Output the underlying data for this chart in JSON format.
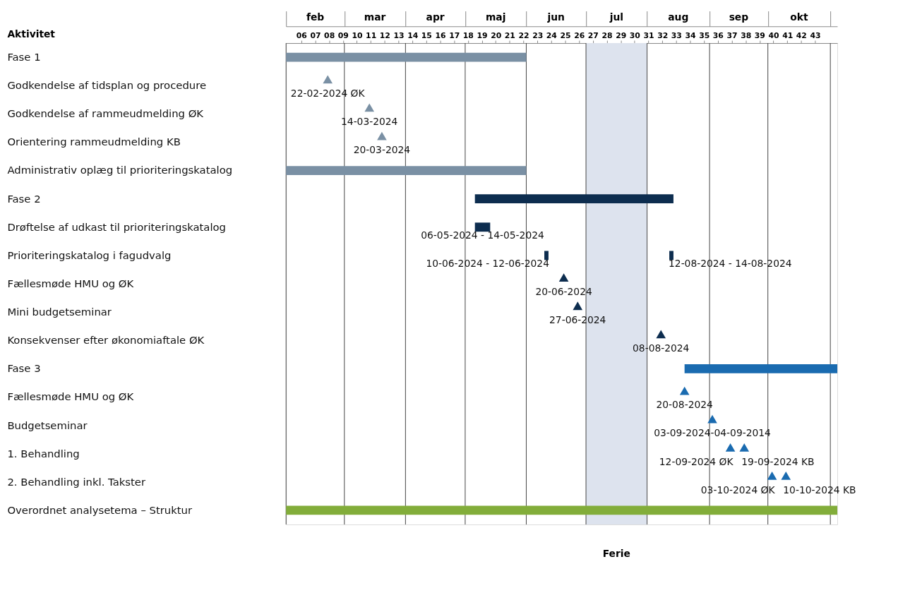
{
  "chart_data": {
    "type": "bar",
    "orientation": "horizontal",
    "ylabel": "Aktivitet",
    "categories": [
      "Fase 1",
      "Godkendelse af tidsplan og procedure",
      "Godkendelse af rammeudmelding ØK",
      "Orientering rammeudmelding KB",
      "Administrativ oplæg til prioriteringskatalog",
      "Fase 2",
      "Drøftelse af udkast til prioriteringskatalog",
      "Prioriteringskatalog i fagudvalg",
      "Fællesmøde HMU og ØK",
      "Mini budgetseminar",
      "Konsekvenser efter økonomiaftale ØK",
      "Fase 3",
      "Fællesmøde HMU og ØK",
      "Budgetseminar",
      "1. Behandling",
      "2. Behandling inkl. Takster",
      "Overordnet analysetema – Struktur"
    ],
    "xlim": [
      4.9,
      44.6
    ],
    "xticks": [
      {
        "value": 6,
        "label": "06"
      },
      {
        "value": 7,
        "label": "07"
      },
      {
        "value": 8,
        "label": "08"
      },
      {
        "value": 9,
        "label": "09"
      },
      10,
      11,
      12,
      13,
      14,
      15,
      16,
      17,
      18,
      19,
      20,
      21,
      22,
      23,
      24,
      25,
      26,
      27,
      28,
      29,
      30,
      31,
      32,
      33,
      34,
      35,
      36,
      37,
      38,
      39,
      40,
      41,
      42,
      43,
      {
        "value": 4.9,
        "label": null
      },
      {
        "value": 9.1,
        "label": null
      },
      {
        "value": 13.5,
        "label": null
      },
      {
        "value": 17.8,
        "label": null
      },
      {
        "value": 22.2,
        "label": null
      },
      {
        "value": 26.5,
        "label": null
      },
      {
        "value": 30.9,
        "label": null
      },
      {
        "value": 35.4,
        "label": null
      },
      {
        "value": 39.6,
        "label": null
      },
      {
        "value": 44.1,
        "label": null
      }
    ],
    "annotations": [
      "feb",
      "mar",
      "apr",
      "maj",
      "jun",
      "jul",
      "aug",
      "sep",
      "okt"
    ],
    "grid": "x",
    "marker": "triangle",
    "bands": [
      {
        "axis": "x",
        "from": 26.5,
        "to": 30.9,
        "label": "Ferie",
        "color": "#dde3ee"
      }
    ],
    "series": [
      {
        "type": "bar",
        "color": "#7a90a4",
        "base": [
          4.9,
          null,
          null,
          null,
          4.9,
          null,
          null,
          null,
          null,
          null,
          null,
          null,
          null,
          null,
          null,
          null,
          null
        ],
        "values": [
          17.3,
          null,
          null,
          null,
          17.3,
          null,
          null,
          null,
          null,
          null,
          null,
          null,
          null,
          null,
          null,
          null,
          null
        ]
      },
      {
        "type": "bar",
        "color": "#0d2d4f",
        "base": [
          null,
          null,
          null,
          null,
          null,
          18.5,
          18.5,
          23.5,
          null,
          null,
          null,
          null,
          null,
          null,
          null,
          null,
          null
        ],
        "values": [
          null,
          null,
          null,
          null,
          null,
          14.3,
          1.1,
          0.3,
          null,
          null,
          null,
          null,
          null,
          null,
          null,
          null,
          null
        ],
        "value_labels": [
          null,
          null,
          null,
          null,
          null,
          null,
          "06-05-2024 - 14-05-2024",
          "10-06-2024 - 12-06-2024",
          null,
          null,
          null,
          null,
          null,
          null,
          null,
          null,
          null
        ]
      },
      {
        "type": "bar",
        "color": "#0d2d4f",
        "base": [
          null,
          null,
          null,
          null,
          null,
          null,
          null,
          32.5,
          null,
          null,
          null,
          null,
          null,
          null,
          null,
          null,
          null
        ],
        "values": [
          null,
          null,
          null,
          null,
          null,
          null,
          null,
          0.3,
          null,
          null,
          null,
          null,
          null,
          null,
          null,
          null,
          null
        ],
        "value_labels": [
          null,
          null,
          null,
          null,
          null,
          null,
          null,
          "12-08-2024 - 14-08-2024",
          null,
          null,
          null,
          null,
          null,
          null,
          null,
          null,
          null
        ]
      },
      {
        "type": "bar",
        "color": "#1a6bb0",
        "base": [
          null,
          null,
          null,
          null,
          null,
          null,
          null,
          null,
          null,
          null,
          null,
          33.6,
          null,
          null,
          null,
          null,
          null
        ],
        "values": [
          null,
          null,
          null,
          null,
          null,
          null,
          null,
          null,
          null,
          null,
          null,
          11.0,
          null,
          null,
          null,
          null,
          null
        ]
      },
      {
        "type": "bar",
        "color": "#82ad3a",
        "base": [
          null,
          null,
          null,
          null,
          null,
          null,
          null,
          null,
          null,
          null,
          null,
          null,
          null,
          null,
          null,
          null,
          4.9
        ],
        "values": [
          null,
          null,
          null,
          null,
          null,
          null,
          null,
          null,
          null,
          null,
          null,
          null,
          null,
          null,
          null,
          null,
          39.7
        ]
      },
      {
        "type": "scatter",
        "color": "#7a90a4",
        "values": [
          null,
          7.9,
          10.9,
          11.8,
          null,
          null,
          null,
          null,
          null,
          null,
          null,
          null,
          null,
          null,
          null,
          null,
          null
        ],
        "value_labels": [
          null,
          "22-02-2024 ØK",
          "14-03-2024",
          "20-03-2024",
          null,
          null,
          null,
          null,
          null,
          null,
          null,
          null,
          null,
          null,
          null,
          null,
          null
        ]
      },
      {
        "type": "scatter",
        "color": "#0d2d4f",
        "values": [
          null,
          null,
          null,
          null,
          null,
          null,
          null,
          null,
          24.9,
          25.9,
          31.9,
          null,
          null,
          null,
          null,
          null,
          null
        ],
        "value_labels": [
          null,
          null,
          null,
          null,
          null,
          null,
          null,
          null,
          "20-06-2024",
          "27-06-2024",
          "08-08-2024",
          null,
          null,
          null,
          null,
          null,
          null
        ]
      },
      {
        "type": "scatter",
        "color": "#1a6bb0",
        "values": [
          null,
          null,
          null,
          null,
          null,
          null,
          null,
          null,
          null,
          null,
          null,
          null,
          33.6,
          35.6,
          36.9,
          39.9,
          null
        ],
        "value_labels": [
          null,
          null,
          null,
          null,
          null,
          null,
          null,
          null,
          null,
          null,
          null,
          null,
          "20-08-2024",
          "03-09-2024-04-09-2014",
          "12-09-2024 ØK",
          "03-10-2024 ØK",
          null
        ]
      },
      {
        "type": "scatter",
        "color": "#1a6bb0",
        "values": [
          null,
          null,
          null,
          null,
          null,
          null,
          null,
          null,
          null,
          null,
          null,
          null,
          null,
          null,
          37.9,
          40.9,
          null
        ],
        "value_labels": [
          null,
          null,
          null,
          null,
          null,
          null,
          null,
          null,
          null,
          null,
          null,
          null,
          null,
          null,
          "19-09-2024 KB",
          "10-10-2024 KB",
          null
        ]
      }
    ]
  }
}
